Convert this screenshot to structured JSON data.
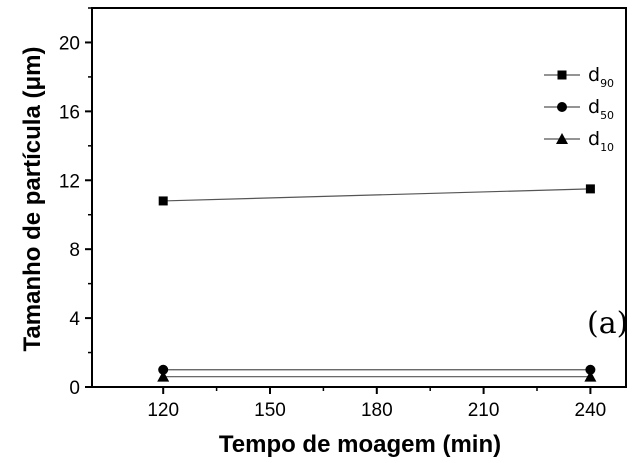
{
  "chart_data": {
    "type": "line",
    "xlabel": "Tempo de moagem (min)",
    "ylabel": "Tamanho de partícula (μm)",
    "xlim": [
      100,
      250
    ],
    "ylim": [
      0,
      22
    ],
    "x_ticks": [
      "120",
      "150",
      "180",
      "210",
      "240"
    ],
    "y_ticks": [
      "0",
      "4",
      "8",
      "12",
      "16",
      "20"
    ],
    "x": [
      120,
      240
    ],
    "series": [
      {
        "name": "d",
        "sub": "90",
        "marker": "square",
        "values": [
          10.8,
          11.5
        ]
      },
      {
        "name": "d",
        "sub": "50",
        "marker": "circle",
        "values": [
          1.0,
          1.0
        ]
      },
      {
        "name": "d",
        "sub": "10",
        "marker": "triangle",
        "values": [
          0.6,
          0.6
        ]
      }
    ],
    "annotation": "(a)",
    "legend_position": "top-right",
    "grid": false,
    "colors": {
      "line": "#555555",
      "marker": "#000000",
      "axis": "#000000"
    }
  }
}
